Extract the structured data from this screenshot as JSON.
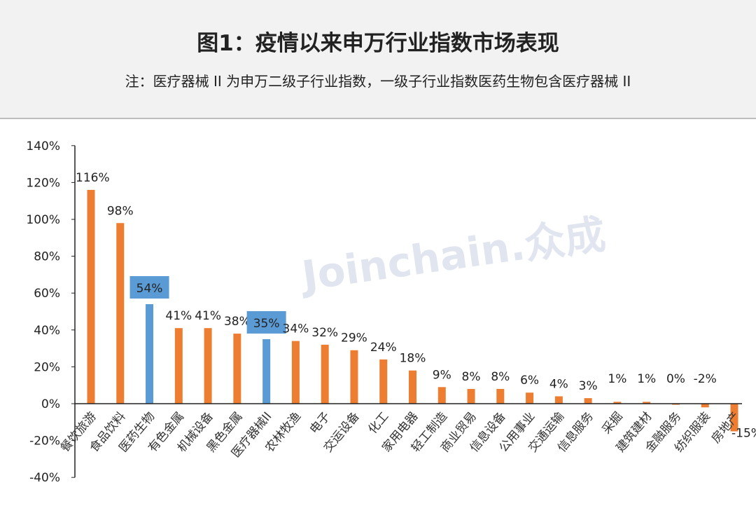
{
  "header": {
    "title": "图1：疫情以来申万行业指数市场表现",
    "subtitle": "注：医疗器械 II 为申万二级子行业指数，一级子行业指数医药生物包含医疗器械 II"
  },
  "watermark": "Joinchain.众成",
  "colors": {
    "default_bar": "#ed7d31",
    "highlight_bar": "#5b9bd5",
    "highlight_label_bg": "#5b9bd5"
  },
  "chart_data": {
    "type": "bar",
    "title": "图1：疫情以来申万行业指数市场表现",
    "xlabel": "",
    "ylabel": "",
    "ylim": [
      -40,
      140
    ],
    "yticks": [
      -40,
      -20,
      0,
      20,
      40,
      60,
      80,
      100,
      120,
      140
    ],
    "ytick_labels": [
      "-40%",
      "-20%",
      "0%",
      "20%",
      "40%",
      "60%",
      "80%",
      "100%",
      "120%",
      "140%"
    ],
    "grid": false,
    "categories": [
      "餐饮旅游",
      "食品饮料",
      "医药生物",
      "有色金属",
      "机械设备",
      "黑色金属",
      "医疗器械II",
      "农林牧渔",
      "电子",
      "交运设备",
      "化工",
      "家用电器",
      "轻工制造",
      "商业贸易",
      "信息设备",
      "公用事业",
      "交通运输",
      "信息服务",
      "采掘",
      "建筑建材",
      "金融服务",
      "纺织服装",
      "房地产"
    ],
    "values": [
      116,
      98,
      54,
      41,
      41,
      38,
      35,
      34,
      32,
      29,
      24,
      18,
      9,
      8,
      8,
      6,
      4,
      3,
      1,
      1,
      0,
      -2,
      -15
    ],
    "data_labels": [
      "116%",
      "98%",
      "54%",
      "41%",
      "41%",
      "38%",
      "35%",
      "34%",
      "32%",
      "29%",
      "24%",
      "18%",
      "9%",
      "8%",
      "8%",
      "6%",
      "4%",
      "3%",
      "1%",
      "1%",
      "0%",
      "-2%",
      "-15%"
    ],
    "highlighted": [
      "医药生物",
      "医疗器械II"
    ]
  }
}
